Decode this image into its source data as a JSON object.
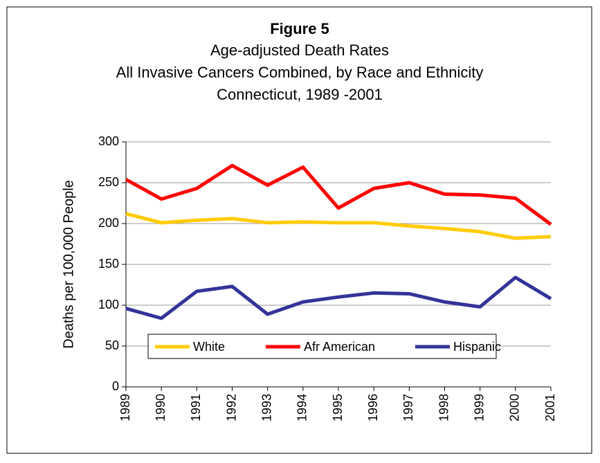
{
  "chart_data": {
    "type": "line",
    "title": "Figure 5",
    "subtitle": [
      "Age-adjusted Death Rates",
      "All Invasive Cancers Combined, by Race and Ethnicity",
      "Connecticut, 1989 -2001"
    ],
    "y_label": "Deaths per 100,000 People",
    "categories": [
      "1989",
      "1990",
      "1991",
      "1992",
      "1993",
      "1994",
      "1995",
      "1996",
      "1997",
      "1998",
      "1999",
      "2000",
      "2001"
    ],
    "series": [
      {
        "name": "White",
        "color": "#ffcc00",
        "values": [
          212,
          201,
          204,
          206,
          201,
          202,
          201,
          201,
          197,
          194,
          190,
          182,
          184
        ]
      },
      {
        "name": "Afr American",
        "color": "#ff0000",
        "values": [
          254,
          230,
          243,
          271,
          247,
          269,
          219,
          243,
          250,
          236,
          235,
          231,
          199
        ]
      },
      {
        "name": "Hispanic",
        "color": "#333399",
        "values": [
          96,
          84,
          117,
          123,
          89,
          104,
          110,
          115,
          114,
          104,
          98,
          134,
          108
        ]
      }
    ],
    "ylim": [
      0,
      300
    ],
    "yticks": [
      0,
      50,
      100,
      150,
      200,
      250,
      300
    ],
    "grid": true,
    "legend": "bottom"
  }
}
